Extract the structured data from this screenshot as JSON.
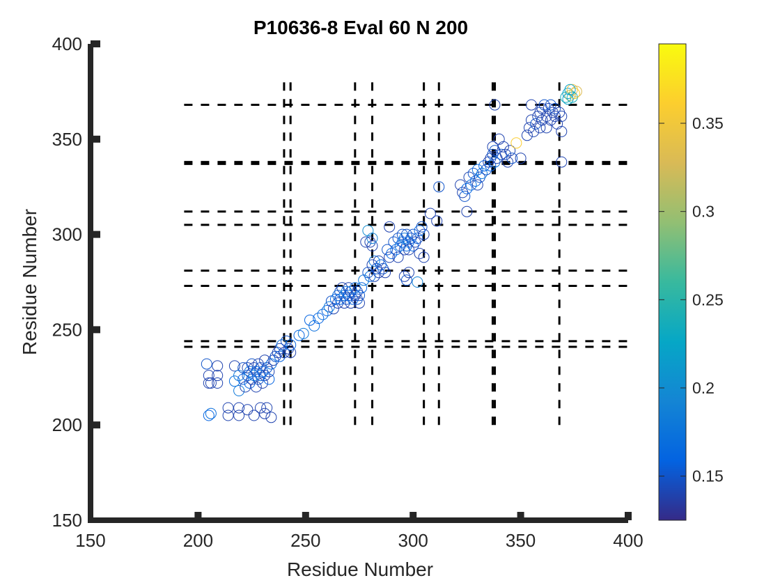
{
  "chart_data": {
    "type": "scatter",
    "title": "P10636-8 Eval 60 N 200",
    "xlabel": "Residue Number",
    "ylabel": "Residue Number",
    "xlim": [
      150,
      400
    ],
    "ylim": [
      150,
      400
    ],
    "xticks": [
      "150",
      "200",
      "250",
      "300",
      "350",
      "400"
    ],
    "yticks": [
      "150",
      "200",
      "250",
      "300",
      "350",
      "400"
    ],
    "grid": false,
    "marker": "open-circle",
    "colormap": "parula",
    "colorbar": {
      "range": [
        0.125,
        0.395
      ],
      "ticks": [
        "0.15",
        "0.2",
        "0.25",
        "0.3",
        "0.35"
      ],
      "colors": [
        "#352a87",
        "#0363e1",
        "#1485d4",
        "#06a7c6",
        "#38b99e",
        "#92bf73",
        "#d9ba56",
        "#fcce2e",
        "#f9fb0e"
      ]
    },
    "dashed_lines": {
      "color": "#000000",
      "vertical_x": [
        240,
        243,
        273,
        281,
        305,
        312,
        337,
        338,
        368
      ],
      "vertical_y_range": [
        200,
        380
      ],
      "horizontal_y": [
        241,
        244,
        273,
        281,
        305,
        312,
        337,
        338,
        368
      ],
      "horizontal_x_range": [
        200,
        400
      ],
      "bottom_axis_dashes_x_range": [
        200,
        400
      ]
    },
    "points": [
      [
        205,
        205,
        0.16
      ],
      [
        206,
        206,
        0.17
      ],
      [
        204,
        232,
        0.15
      ],
      [
        205,
        226,
        0.14
      ],
      [
        206,
        222,
        0.14
      ],
      [
        209,
        231,
        0.14
      ],
      [
        209,
        226,
        0.14
      ],
      [
        209,
        222,
        0.14
      ],
      [
        205,
        222,
        0.14
      ],
      [
        214,
        209,
        0.14
      ],
      [
        214,
        205,
        0.14
      ],
      [
        219,
        209,
        0.14
      ],
      [
        219,
        205,
        0.14
      ],
      [
        223,
        208,
        0.14
      ],
      [
        226,
        205,
        0.14
      ],
      [
        229,
        209,
        0.14
      ],
      [
        231,
        206,
        0.14
      ],
      [
        232,
        209,
        0.14
      ],
      [
        234,
        204,
        0.14
      ],
      [
        217,
        231,
        0.14
      ],
      [
        217,
        223,
        0.17
      ],
      [
        219,
        226,
        0.18
      ],
      [
        219,
        218,
        0.18
      ],
      [
        221,
        230,
        0.15
      ],
      [
        221,
        224,
        0.16
      ],
      [
        222,
        220,
        0.14
      ],
      [
        223,
        226,
        0.15
      ],
      [
        223,
        230,
        0.14
      ],
      [
        224,
        222,
        0.16
      ],
      [
        224,
        228,
        0.17
      ],
      [
        225,
        232,
        0.15
      ],
      [
        225,
        224,
        0.14
      ],
      [
        226,
        226,
        0.18
      ],
      [
        226,
        230,
        0.14
      ],
      [
        227,
        220,
        0.14
      ],
      [
        227,
        228,
        0.16
      ],
      [
        228,
        224,
        0.15
      ],
      [
        228,
        232,
        0.14
      ],
      [
        229,
        226,
        0.17
      ],
      [
        229,
        230,
        0.15
      ],
      [
        230,
        222,
        0.14
      ],
      [
        230,
        228,
        0.16
      ],
      [
        231,
        234,
        0.14
      ],
      [
        231,
        226,
        0.14
      ],
      [
        232,
        230,
        0.15
      ],
      [
        233,
        228,
        0.14
      ],
      [
        233,
        224,
        0.16
      ],
      [
        234,
        232,
        0.17
      ],
      [
        235,
        234,
        0.14
      ],
      [
        236,
        236,
        0.15
      ],
      [
        237,
        238,
        0.14
      ],
      [
        238,
        236,
        0.16
      ],
      [
        238,
        240,
        0.14
      ],
      [
        239,
        242,
        0.17
      ],
      [
        240,
        238,
        0.14
      ],
      [
        241,
        244,
        0.15
      ],
      [
        242,
        240,
        0.14
      ],
      [
        243,
        238,
        0.14
      ],
      [
        243,
        242,
        0.16
      ],
      [
        247,
        247,
        0.16
      ],
      [
        249,
        248,
        0.18
      ],
      [
        252,
        255,
        0.16
      ],
      [
        254,
        252,
        0.17
      ],
      [
        256,
        256,
        0.16
      ],
      [
        258,
        258,
        0.17
      ],
      [
        260,
        260,
        0.16
      ],
      [
        261,
        262,
        0.18
      ],
      [
        262,
        265,
        0.15
      ],
      [
        263,
        261,
        0.14
      ],
      [
        264,
        266,
        0.16
      ],
      [
        265,
        268,
        0.17
      ],
      [
        265,
        264,
        0.14
      ],
      [
        266,
        270,
        0.15
      ],
      [
        266,
        266,
        0.16
      ],
      [
        267,
        272,
        0.14
      ],
      [
        268,
        268,
        0.17
      ],
      [
        268,
        264,
        0.14
      ],
      [
        269,
        270,
        0.18
      ],
      [
        269,
        266,
        0.15
      ],
      [
        270,
        272,
        0.14
      ],
      [
        270,
        268,
        0.16
      ],
      [
        271,
        264,
        0.14
      ],
      [
        271,
        270,
        0.15
      ],
      [
        272,
        266,
        0.16
      ],
      [
        273,
        268,
        0.14
      ],
      [
        273,
        272,
        0.17
      ],
      [
        274,
        270,
        0.14
      ],
      [
        274,
        266,
        0.15
      ],
      [
        275,
        264,
        0.14
      ],
      [
        275,
        268,
        0.15
      ],
      [
        276,
        272,
        0.16
      ],
      [
        277,
        276,
        0.18
      ],
      [
        279,
        280,
        0.15
      ],
      [
        280,
        278,
        0.17
      ],
      [
        281,
        284,
        0.14
      ],
      [
        282,
        278,
        0.14
      ],
      [
        282,
        286,
        0.18
      ],
      [
        283,
        282,
        0.15
      ],
      [
        284,
        280,
        0.14
      ],
      [
        284,
        286,
        0.14
      ],
      [
        285,
        284,
        0.16
      ],
      [
        286,
        282,
        0.15
      ],
      [
        287,
        280,
        0.14
      ],
      [
        278,
        296,
        0.14
      ],
      [
        280,
        296,
        0.14
      ],
      [
        281,
        294,
        0.14
      ],
      [
        279,
        302,
        0.2
      ],
      [
        281,
        298,
        0.19
      ],
      [
        288,
        292,
        0.15
      ],
      [
        289,
        288,
        0.14
      ],
      [
        290,
        290,
        0.16
      ],
      [
        289,
        304,
        0.14
      ],
      [
        291,
        296,
        0.15
      ],
      [
        292,
        292,
        0.16
      ],
      [
        293,
        298,
        0.15
      ],
      [
        293,
        288,
        0.14
      ],
      [
        294,
        294,
        0.17
      ],
      [
        295,
        300,
        0.15
      ],
      [
        295,
        296,
        0.16
      ],
      [
        296,
        292,
        0.14
      ],
      [
        296,
        298,
        0.18
      ],
      [
        297,
        294,
        0.16
      ],
      [
        297,
        300,
        0.15
      ],
      [
        298,
        296,
        0.17
      ],
      [
        298,
        292,
        0.14
      ],
      [
        299,
        298,
        0.15
      ],
      [
        300,
        294,
        0.16
      ],
      [
        300,
        300,
        0.15
      ],
      [
        301,
        296,
        0.14
      ],
      [
        302,
        298,
        0.15
      ],
      [
        303,
        302,
        0.16
      ],
      [
        304,
        304,
        0.15
      ],
      [
        305,
        300,
        0.14
      ],
      [
        303,
        290,
        0.14
      ],
      [
        305,
        288,
        0.14
      ],
      [
        296,
        278,
        0.14
      ],
      [
        297,
        276,
        0.15
      ],
      [
        302,
        275,
        0.19
      ],
      [
        298,
        280,
        0.14
      ],
      [
        308,
        311,
        0.14
      ],
      [
        311,
        307,
        0.14
      ],
      [
        312,
        325,
        0.15
      ],
      [
        322,
        326,
        0.14
      ],
      [
        323,
        322,
        0.14
      ],
      [
        324,
        320,
        0.15
      ],
      [
        325,
        324,
        0.16
      ],
      [
        325,
        312,
        0.14
      ],
      [
        326,
        330,
        0.14
      ],
      [
        327,
        326,
        0.17
      ],
      [
        328,
        332,
        0.15
      ],
      [
        329,
        328,
        0.16
      ],
      [
        330,
        326,
        0.14
      ],
      [
        330,
        334,
        0.17
      ],
      [
        331,
        330,
        0.15
      ],
      [
        332,
        332,
        0.18
      ],
      [
        333,
        336,
        0.16
      ],
      [
        334,
        334,
        0.15
      ],
      [
        335,
        338,
        0.14
      ],
      [
        336,
        336,
        0.16
      ],
      [
        336,
        340,
        0.14
      ],
      [
        337,
        342,
        0.15
      ],
      [
        337,
        346,
        0.14
      ],
      [
        338,
        338,
        0.17
      ],
      [
        338,
        344,
        0.15
      ],
      [
        339,
        340,
        0.14
      ],
      [
        340,
        350,
        0.14
      ],
      [
        341,
        342,
        0.15
      ],
      [
        342,
        346,
        0.14
      ],
      [
        343,
        342,
        0.14
      ],
      [
        344,
        338,
        0.14
      ],
      [
        345,
        344,
        0.14
      ],
      [
        346,
        340,
        0.15
      ],
      [
        348,
        348,
        0.36
      ],
      [
        350,
        340,
        0.14
      ],
      [
        353,
        352,
        0.14
      ],
      [
        354,
        356,
        0.14
      ],
      [
        355,
        360,
        0.14
      ],
      [
        355,
        368,
        0.14
      ],
      [
        356,
        354,
        0.14
      ],
      [
        357,
        358,
        0.15
      ],
      [
        358,
        362,
        0.14
      ],
      [
        359,
        356,
        0.14
      ],
      [
        359,
        364,
        0.14
      ],
      [
        360,
        360,
        0.14
      ],
      [
        360,
        366,
        0.14
      ],
      [
        361,
        368,
        0.15
      ],
      [
        362,
        362,
        0.14
      ],
      [
        362,
        356,
        0.14
      ],
      [
        363,
        366,
        0.14
      ],
      [
        364,
        360,
        0.14
      ],
      [
        364,
        368,
        0.15
      ],
      [
        365,
        364,
        0.14
      ],
      [
        366,
        362,
        0.14
      ],
      [
        366,
        366,
        0.15
      ],
      [
        367,
        358,
        0.14
      ],
      [
        368,
        364,
        0.14
      ],
      [
        369,
        362,
        0.14
      ],
      [
        369,
        354,
        0.14
      ],
      [
        338,
        368,
        0.14
      ],
      [
        369,
        338,
        0.14
      ],
      [
        371,
        372,
        0.24
      ],
      [
        372,
        374,
        0.22
      ],
      [
        373,
        373,
        0.3
      ],
      [
        374,
        376,
        0.34
      ],
      [
        375,
        374,
        0.36
      ],
      [
        372,
        371,
        0.22
      ],
      [
        374,
        372,
        0.24
      ],
      [
        376,
        375,
        0.33
      ],
      [
        373,
        376,
        0.22
      ]
    ]
  }
}
